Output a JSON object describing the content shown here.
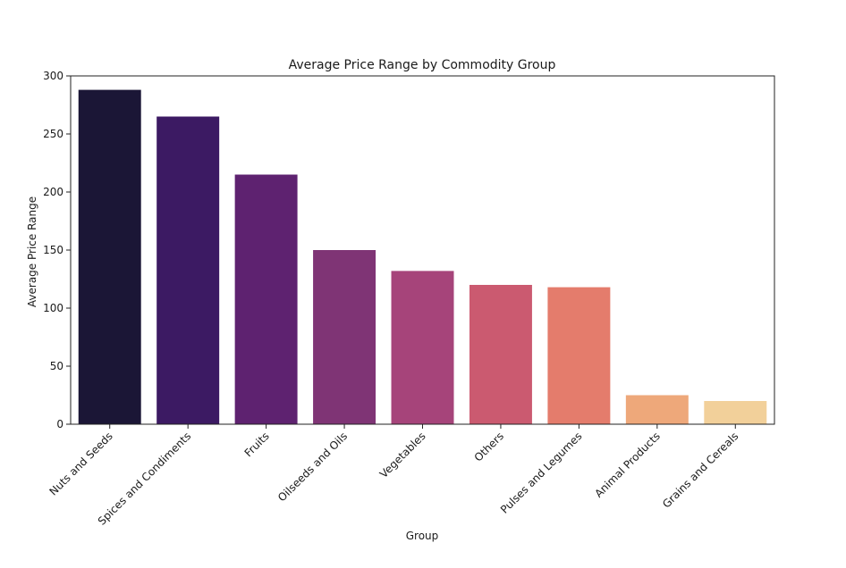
{
  "chart_data": {
    "type": "bar",
    "title": "Average Price Range by Commodity Group",
    "xlabel": "Group",
    "ylabel": "Average Price Range",
    "categories": [
      "Nuts and Seeds",
      "Spices and Condiments",
      "Fruits",
      "Oilseeds and Oils",
      "Vegetables",
      "Others",
      "Pulses and Legumes",
      "Animal Products",
      "Grains and Cereals"
    ],
    "values": [
      288,
      265,
      215,
      150,
      132,
      120,
      118,
      25,
      20
    ],
    "ylim": [
      0,
      300
    ],
    "yticks": [
      0,
      50,
      100,
      150,
      200,
      250,
      300
    ],
    "grid": false,
    "legend": "none",
    "colors": [
      "#1b1636",
      "#3c1a63",
      "#5e2270",
      "#7f3475",
      "#a6447a",
      "#cb5a70",
      "#e47c6c",
      "#eea87a",
      "#f2d09a"
    ]
  }
}
